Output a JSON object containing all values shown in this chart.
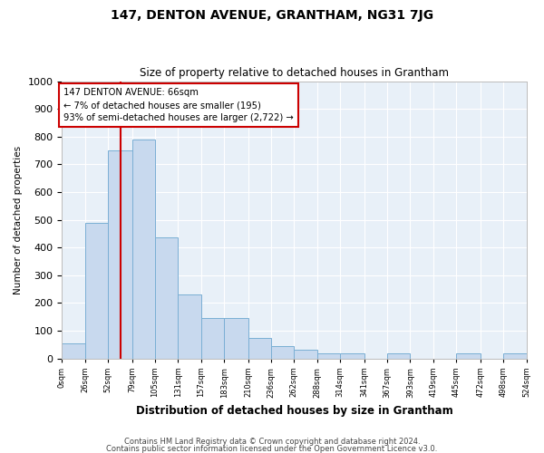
{
  "title": "147, DENTON AVENUE, GRANTHAM, NG31 7JG",
  "subtitle": "Size of property relative to detached houses in Grantham",
  "xlabel": "Distribution of detached houses by size in Grantham",
  "ylabel": "Number of detached properties",
  "bar_color": "#c8d9ee",
  "bar_edge_color": "#7aafd4",
  "background_color": "#e8f0f8",
  "annotation_box_text": "147 DENTON AVENUE: 66sqm\n← 7% of detached houses are smaller (195)\n93% of semi-detached houses are larger (2,722) →",
  "vline_x": 66,
  "vline_color": "#cc0000",
  "bins": [
    0,
    26,
    52,
    79,
    105,
    131,
    157,
    183,
    210,
    236,
    262,
    288,
    314,
    341,
    367,
    393,
    419,
    445,
    472,
    498,
    524
  ],
  "bar_heights": [
    55,
    490,
    750,
    790,
    435,
    230,
    145,
    145,
    75,
    45,
    30,
    20,
    20,
    0,
    20,
    0,
    0,
    20,
    0,
    20
  ],
  "ylim": [
    0,
    1000
  ],
  "yticks": [
    0,
    100,
    200,
    300,
    400,
    500,
    600,
    700,
    800,
    900,
    1000
  ],
  "footer1": "Contains HM Land Registry data © Crown copyright and database right 2024.",
  "footer2": "Contains public sector information licensed under the Open Government Licence v3.0.",
  "grid_color": "#ffffff",
  "figsize": [
    6.0,
    5.0
  ],
  "dpi": 100,
  "tick_labels": [
    "0sqm",
    "26sqm",
    "52sqm",
    "79sqm",
    "105sqm",
    "131sqm",
    "157sqm",
    "183sqm",
    "210sqm",
    "236sqm",
    "262sqm",
    "288sqm",
    "314sqm",
    "341sqm",
    "367sqm",
    "393sqm",
    "419sqm",
    "445sqm",
    "472sqm",
    "498sqm",
    "524sqm"
  ]
}
